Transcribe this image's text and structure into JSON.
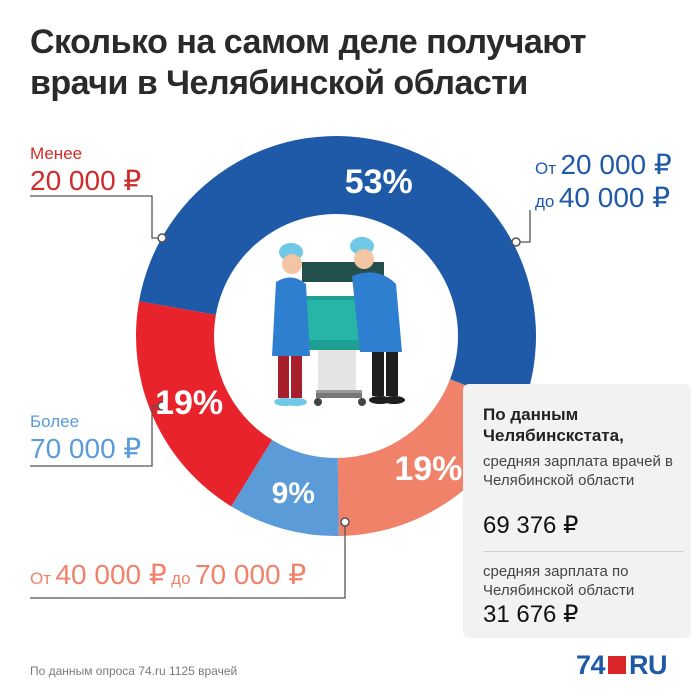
{
  "title": "Сколько на самом деле получают врачи в Челябинской области",
  "chart_data": {
    "type": "pie",
    "variant": "donut",
    "categories": [
      "От 20 000 ₽ до 40 000 ₽",
      "От 40 000 ₽ до 70 000 ₽",
      "Более 70 000 ₽",
      "Менее 20 000 ₽"
    ],
    "values": [
      53,
      19,
      9,
      19
    ],
    "value_labels": [
      "53%",
      "19%",
      "9%",
      "19%"
    ],
    "colors": [
      "#1e5aa8",
      "#f0826a",
      "#5a9bd8",
      "#e8232c"
    ]
  },
  "labels": {
    "less": {
      "prefix": "Менее",
      "amount": "20 000 ₽"
    },
    "mid": {
      "from_word": "От",
      "from_amount": "20 000 ₽",
      "to_word": "до",
      "to_amount": "40 000 ₽"
    },
    "more": {
      "prefix": "Более",
      "amount": "70 000 ₽"
    },
    "high": {
      "from_word": "От",
      "from_amount": "40 000 ₽",
      "to_word": "до",
      "to_amount": "70 000 ₽"
    }
  },
  "infobox": {
    "heading": "По данным Челябинскстата,",
    "text1": "средняя зарплата врачей в Челябинской области",
    "value1": "69 376 ₽",
    "text2": "средняя зарплата по Челябинской области",
    "value2": "31 676 ₽"
  },
  "footer": {
    "source": "По данным опроса 74.ru 1125 врачей",
    "logo_num": "74",
    "logo_text": "RU"
  }
}
